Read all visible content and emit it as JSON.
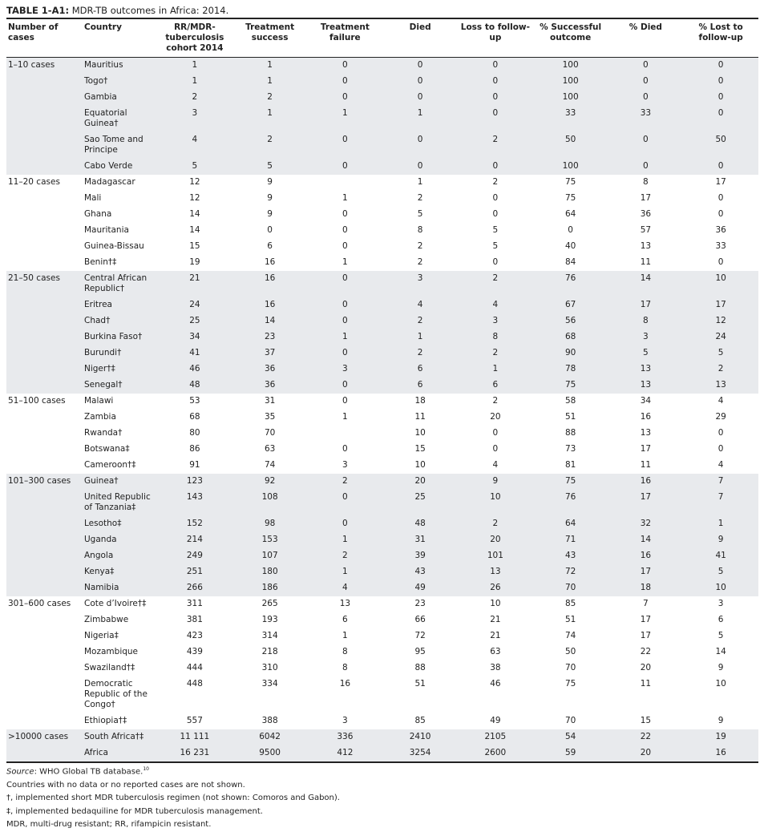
{
  "title": {
    "label": "TABLE 1-A1:",
    "text": "MDR-TB outcomes in Africa: 2014."
  },
  "table": {
    "headers": [
      "Number of cases",
      "Country",
      "RR/MDR-tuberculosis cohort 2014",
      "Treatment success",
      "Treatment failure",
      "Died",
      "Loss to follow-up",
      "% Successful outcome",
      "% Died",
      "% Lost to follow-up"
    ],
    "groups": [
      {
        "label": "1–10 cases",
        "rows": [
          {
            "country": "Mauritius",
            "cells": [
              1,
              1,
              0,
              0,
              0,
              100,
              0,
              0
            ]
          },
          {
            "country": "Togo†",
            "cells": [
              1,
              1,
              0,
              0,
              0,
              100,
              0,
              0
            ]
          },
          {
            "country": "Gambia",
            "cells": [
              2,
              2,
              0,
              0,
              0,
              100,
              0,
              0
            ]
          },
          {
            "country": "Equatorial Guinea†",
            "cells": [
              3,
              1,
              1,
              1,
              0,
              33,
              33,
              0
            ]
          },
          {
            "country": "Sao Tome and Principe",
            "cells": [
              4,
              2,
              0,
              0,
              2,
              50,
              0,
              50
            ]
          },
          {
            "country": "Cabo Verde",
            "cells": [
              5,
              5,
              0,
              0,
              0,
              100,
              0,
              0
            ]
          }
        ]
      },
      {
        "label": "11–20 cases",
        "rows": [
          {
            "country": "Madagascar",
            "cells": [
              12,
              9,
              null,
              1,
              2,
              75,
              8,
              17
            ]
          },
          {
            "country": "Mali",
            "cells": [
              12,
              9,
              1,
              2,
              0,
              75,
              17,
              0
            ]
          },
          {
            "country": "Ghana",
            "cells": [
              14,
              9,
              0,
              5,
              0,
              64,
              36,
              0
            ]
          },
          {
            "country": "Mauritania",
            "cells": [
              14,
              0,
              0,
              8,
              5,
              0,
              57,
              36
            ]
          },
          {
            "country": "Guinea-Bissau",
            "cells": [
              15,
              6,
              0,
              2,
              5,
              40,
              13,
              33
            ]
          },
          {
            "country": "Benin†‡",
            "cells": [
              19,
              16,
              1,
              2,
              0,
              84,
              11,
              0
            ]
          }
        ]
      },
      {
        "label": "21–50 cases",
        "rows": [
          {
            "country": "Central African Republic†",
            "cells": [
              21,
              16,
              0,
              3,
              2,
              76,
              14,
              10
            ]
          },
          {
            "country": "Eritrea",
            "cells": [
              24,
              16,
              0,
              4,
              4,
              67,
              17,
              17
            ]
          },
          {
            "country": "Chad†",
            "cells": [
              25,
              14,
              0,
              2,
              3,
              56,
              8,
              12
            ]
          },
          {
            "country": "Burkina Faso†",
            "cells": [
              34,
              23,
              1,
              1,
              8,
              68,
              3,
              24
            ]
          },
          {
            "country": "Burundi†",
            "cells": [
              41,
              37,
              0,
              2,
              2,
              90,
              5,
              5
            ]
          },
          {
            "country": "Niger†‡",
            "cells": [
              46,
              36,
              3,
              6,
              1,
              78,
              13,
              2
            ]
          },
          {
            "country": "Senegal†",
            "cells": [
              48,
              36,
              0,
              6,
              6,
              75,
              13,
              13
            ]
          }
        ]
      },
      {
        "label": "51–100 cases",
        "rows": [
          {
            "country": "Malawi",
            "cells": [
              53,
              31,
              0,
              18,
              2,
              58,
              34,
              4
            ]
          },
          {
            "country": "Zambia",
            "cells": [
              68,
              35,
              1,
              11,
              20,
              51,
              16,
              29
            ]
          },
          {
            "country": "Rwanda†",
            "cells": [
              80,
              70,
              null,
              10,
              0,
              88,
              13,
              0
            ]
          },
          {
            "country": "Botswana‡",
            "cells": [
              86,
              63,
              0,
              15,
              0,
              73,
              17,
              0
            ]
          },
          {
            "country": "Cameroon†‡",
            "cells": [
              91,
              74,
              3,
              10,
              4,
              81,
              11,
              4
            ]
          }
        ]
      },
      {
        "label": "101–300 cases",
        "rows": [
          {
            "country": "Guinea†",
            "cells": [
              123,
              92,
              2,
              20,
              9,
              75,
              16,
              7
            ]
          },
          {
            "country": "United Republic of Tanzania‡",
            "cells": [
              143,
              108,
              0,
              25,
              10,
              76,
              17,
              7
            ]
          },
          {
            "country": "Lesotho‡",
            "cells": [
              152,
              98,
              0,
              48,
              2,
              64,
              32,
              1
            ]
          },
          {
            "country": "Uganda",
            "cells": [
              214,
              153,
              1,
              31,
              20,
              71,
              14,
              9
            ]
          },
          {
            "country": "Angola",
            "cells": [
              249,
              107,
              2,
              39,
              101,
              43,
              16,
              41
            ]
          },
          {
            "country": "Kenya‡",
            "cells": [
              251,
              180,
              1,
              43,
              13,
              72,
              17,
              5
            ]
          },
          {
            "country": "Namibia",
            "cells": [
              266,
              186,
              4,
              49,
              26,
              70,
              18,
              10
            ]
          }
        ]
      },
      {
        "label": "301–600 cases",
        "rows": [
          {
            "country": "Cote d’Ivoire†‡",
            "cells": [
              311,
              265,
              13,
              23,
              10,
              85,
              7,
              3
            ]
          },
          {
            "country": "Zimbabwe",
            "cells": [
              381,
              193,
              6,
              66,
              21,
              51,
              17,
              6
            ]
          },
          {
            "country": "Nigeria‡",
            "cells": [
              423,
              314,
              1,
              72,
              21,
              74,
              17,
              5
            ]
          },
          {
            "country": "Mozambique",
            "cells": [
              439,
              218,
              8,
              95,
              63,
              50,
              22,
              14
            ]
          },
          {
            "country": "Swaziland†‡",
            "cells": [
              444,
              310,
              8,
              88,
              38,
              70,
              20,
              9
            ]
          },
          {
            "country": "Democratic Republic of the Congo†",
            "cells": [
              448,
              334,
              16,
              51,
              46,
              75,
              11,
              10
            ]
          },
          {
            "country": "Ethiopia†‡",
            "cells": [
              557,
              388,
              3,
              85,
              49,
              70,
              15,
              9
            ]
          }
        ]
      },
      {
        "label": ">10000 cases",
        "rows": [
          {
            "country": "South Africa†‡",
            "cells": [
              "11 111",
              6042,
              336,
              2410,
              2105,
              54,
              22,
              19
            ]
          },
          {
            "country": "Africa",
            "cells": [
              "16 231",
              9500,
              412,
              3254,
              2600,
              59,
              20,
              16
            ]
          }
        ]
      }
    ]
  },
  "notes": {
    "source_label": "Source",
    "source_text": ": WHO Global TB database.",
    "source_ref": "10",
    "lines": [
      "Countries with no data or no reported cases are not shown.",
      "†, implemented short MDR tuberculosis regimen (not shown: Comoros and Gabon).",
      "‡, implemented bedaquiline for MDR tuberculosis management.",
      "MDR, multi-drug resistant; RR, rifampicin resistant."
    ]
  }
}
